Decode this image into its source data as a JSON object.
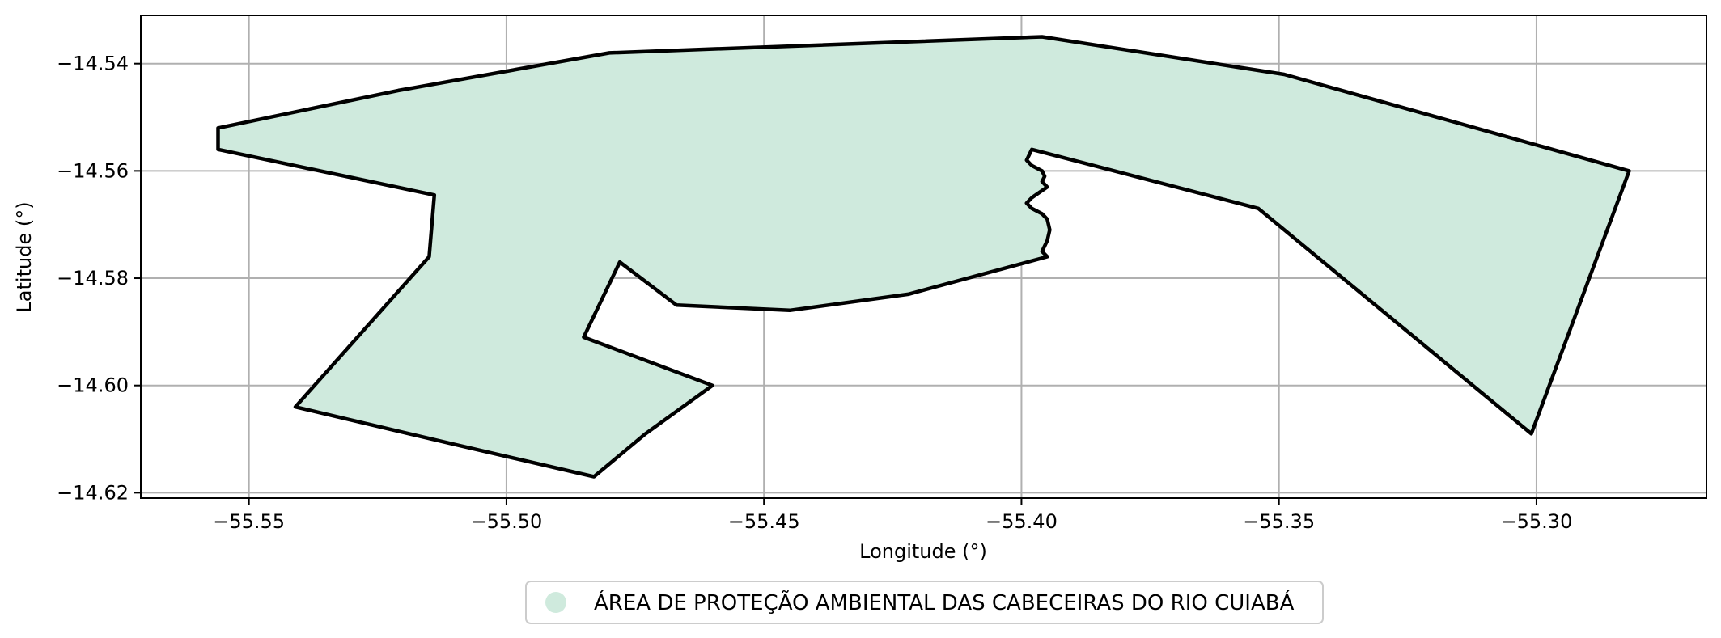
{
  "chart_data": {
    "type": "map",
    "xlabel": "Longitude (°)",
    "ylabel": "Latitude (°)",
    "xlim": [
      -55.571,
      -55.267
    ],
    "ylim": [
      -14.621,
      -14.531
    ],
    "grid": true,
    "x_ticks": [
      {
        "value": -55.55,
        "label": "−55.55"
      },
      {
        "value": -55.5,
        "label": "−55.50"
      },
      {
        "value": -55.45,
        "label": "−55.45"
      },
      {
        "value": -55.4,
        "label": "−55.40"
      },
      {
        "value": -55.35,
        "label": "−55.35"
      },
      {
        "value": -55.3,
        "label": "−55.30"
      }
    ],
    "y_ticks": [
      {
        "value": -14.54,
        "label": "−14.54"
      },
      {
        "value": -14.56,
        "label": "−14.56"
      },
      {
        "value": -14.58,
        "label": "−14.58"
      },
      {
        "value": -14.6,
        "label": "−14.60"
      },
      {
        "value": -14.62,
        "label": "−14.62"
      }
    ],
    "legend": {
      "placement": "bottom-center",
      "entries": [
        {
          "label": "ÁREA DE PROTEÇÃO AMBIENTAL DAS CABECEIRAS DO RIO CUIABÁ",
          "color": "#cfeadd"
        }
      ]
    },
    "polygon": {
      "fill": "#cfeadd",
      "stroke": "#000000",
      "coords": [
        [
          -55.556,
          -14.552
        ],
        [
          -55.521,
          -14.545
        ],
        [
          -55.48,
          -14.538
        ],
        [
          -55.396,
          -14.535
        ],
        [
          -55.349,
          -14.542
        ],
        [
          -55.282,
          -14.56
        ],
        [
          -55.301,
          -14.609
        ],
        [
          -55.354,
          -14.567
        ],
        [
          -55.398,
          -14.556
        ],
        [
          -55.399,
          -14.558
        ],
        [
          -55.398,
          -14.559
        ],
        [
          -55.396,
          -14.56
        ],
        [
          -55.3955,
          -14.561
        ],
        [
          -55.396,
          -14.562
        ],
        [
          -55.395,
          -14.563
        ],
        [
          -55.3965,
          -14.564
        ],
        [
          -55.398,
          -14.565
        ],
        [
          -55.399,
          -14.566
        ],
        [
          -55.398,
          -14.567
        ],
        [
          -55.396,
          -14.568
        ],
        [
          -55.395,
          -14.569
        ],
        [
          -55.3945,
          -14.571
        ],
        [
          -55.395,
          -14.573
        ],
        [
          -55.396,
          -14.575
        ],
        [
          -55.395,
          -14.576
        ],
        [
          -55.422,
          -14.583
        ],
        [
          -55.445,
          -14.586
        ],
        [
          -55.467,
          -14.585
        ],
        [
          -55.478,
          -14.577
        ],
        [
          -55.485,
          -14.591
        ],
        [
          -55.46,
          -14.6
        ],
        [
          -55.473,
          -14.609
        ],
        [
          -55.483,
          -14.617
        ],
        [
          -55.51,
          -14.611
        ],
        [
          -55.541,
          -14.604
        ],
        [
          -55.515,
          -14.576
        ],
        [
          -55.514,
          -14.5645
        ],
        [
          -55.556,
          -14.556
        ]
      ]
    }
  }
}
